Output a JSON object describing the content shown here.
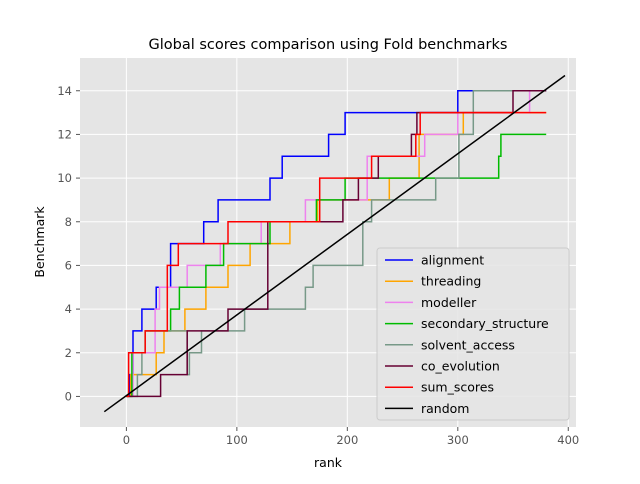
{
  "chart_data": {
    "type": "line",
    "title": "Global scores comparison using Fold benchmarks",
    "xlabel": "rank",
    "ylabel": "Benchmark",
    "xlim": [
      -42,
      407
    ],
    "ylim": [
      -1.4,
      15.5
    ],
    "xticks": [
      0,
      100,
      200,
      300,
      400
    ],
    "yticks": [
      0,
      2,
      4,
      6,
      8,
      10,
      12,
      14
    ],
    "grid": true,
    "legend_position": "lower-right",
    "series": [
      {
        "name": "alignment",
        "color": "#0000ff",
        "points": [
          [
            3,
            0
          ],
          [
            3,
            1
          ],
          [
            6,
            1
          ],
          [
            6,
            3
          ],
          [
            14,
            3
          ],
          [
            14,
            4
          ],
          [
            27,
            4
          ],
          [
            27,
            5
          ],
          [
            40,
            5
          ],
          [
            40,
            7
          ],
          [
            70,
            7
          ],
          [
            70,
            8
          ],
          [
            83,
            8
          ],
          [
            83,
            9
          ],
          [
            130,
            9
          ],
          [
            130,
            10
          ],
          [
            141,
            10
          ],
          [
            141,
            11
          ],
          [
            183,
            11
          ],
          [
            183,
            12
          ],
          [
            198,
            12
          ],
          [
            198,
            13
          ],
          [
            300,
            13
          ],
          [
            300,
            14
          ],
          [
            380,
            14
          ]
        ]
      },
      {
        "name": "threading",
        "color": "#ffa500",
        "points": [
          [
            0,
            0
          ],
          [
            4,
            0
          ],
          [
            4,
            1
          ],
          [
            27,
            1
          ],
          [
            27,
            2
          ],
          [
            34,
            2
          ],
          [
            34,
            3
          ],
          [
            53,
            3
          ],
          [
            53,
            4
          ],
          [
            72,
            4
          ],
          [
            72,
            5
          ],
          [
            92,
            5
          ],
          [
            92,
            6
          ],
          [
            112,
            6
          ],
          [
            112,
            7
          ],
          [
            148,
            7
          ],
          [
            148,
            8
          ],
          [
            173,
            8
          ],
          [
            173,
            9
          ],
          [
            238,
            9
          ],
          [
            238,
            10
          ],
          [
            265,
            10
          ],
          [
            265,
            12
          ],
          [
            305,
            12
          ],
          [
            305,
            13
          ],
          [
            380,
            13
          ]
        ]
      },
      {
        "name": "modeller",
        "color": "#ee82ee",
        "points": [
          [
            0,
            0
          ],
          [
            6,
            0
          ],
          [
            6,
            2
          ],
          [
            26,
            2
          ],
          [
            26,
            4
          ],
          [
            30,
            4
          ],
          [
            30,
            5
          ],
          [
            55,
            5
          ],
          [
            55,
            6
          ],
          [
            85,
            6
          ],
          [
            85,
            7
          ],
          [
            122,
            7
          ],
          [
            122,
            8
          ],
          [
            162,
            8
          ],
          [
            162,
            9
          ],
          [
            218,
            9
          ],
          [
            218,
            11
          ],
          [
            270,
            11
          ],
          [
            270,
            12
          ],
          [
            300,
            12
          ],
          [
            300,
            13
          ],
          [
            365,
            13
          ],
          [
            365,
            14
          ],
          [
            380,
            14
          ]
        ]
      },
      {
        "name": "secondary_structure",
        "color": "#00bb00",
        "points": [
          [
            0,
            0
          ],
          [
            5,
            0
          ],
          [
            5,
            2
          ],
          [
            17,
            2
          ],
          [
            17,
            3
          ],
          [
            40,
            3
          ],
          [
            40,
            4
          ],
          [
            48,
            4
          ],
          [
            48,
            5
          ],
          [
            72,
            5
          ],
          [
            72,
            6
          ],
          [
            88,
            6
          ],
          [
            88,
            7
          ],
          [
            130,
            7
          ],
          [
            130,
            8
          ],
          [
            172,
            8
          ],
          [
            172,
            9
          ],
          [
            198,
            9
          ],
          [
            198,
            10
          ],
          [
            337,
            10
          ],
          [
            337,
            11
          ],
          [
            339,
            11
          ],
          [
            339,
            12
          ],
          [
            380,
            12
          ]
        ]
      },
      {
        "name": "solvent_access",
        "color": "#779988",
        "points": [
          [
            0,
            0
          ],
          [
            10,
            0
          ],
          [
            10,
            1
          ],
          [
            14,
            1
          ],
          [
            14,
            2
          ],
          [
            17,
            2
          ],
          [
            17,
            3
          ],
          [
            55,
            3
          ],
          [
            55,
            1
          ],
          [
            57,
            1
          ],
          [
            57,
            2
          ],
          [
            68,
            2
          ],
          [
            68,
            3
          ],
          [
            107,
            3
          ],
          [
            107,
            4
          ],
          [
            162,
            4
          ],
          [
            162,
            5
          ],
          [
            169,
            5
          ],
          [
            169,
            6
          ],
          [
            214,
            6
          ],
          [
            214,
            8
          ],
          [
            222,
            8
          ],
          [
            222,
            9
          ],
          [
            280,
            9
          ],
          [
            280,
            10
          ],
          [
            301,
            10
          ],
          [
            301,
            12
          ],
          [
            314,
            12
          ],
          [
            314,
            14
          ],
          [
            370,
            14
          ],
          [
            370,
            14
          ],
          [
            380,
            14
          ]
        ]
      },
      {
        "name": "co_evolution",
        "color": "#660033",
        "points": [
          [
            0,
            0
          ],
          [
            31,
            0
          ],
          [
            31,
            1
          ],
          [
            55,
            1
          ],
          [
            55,
            3
          ],
          [
            92,
            3
          ],
          [
            92,
            4
          ],
          [
            128,
            4
          ],
          [
            128,
            7
          ],
          [
            128,
            8
          ],
          [
            196,
            8
          ],
          [
            196,
            9
          ],
          [
            210,
            9
          ],
          [
            210,
            10
          ],
          [
            228,
            10
          ],
          [
            228,
            11
          ],
          [
            258,
            11
          ],
          [
            258,
            12
          ],
          [
            263,
            12
          ],
          [
            263,
            13
          ],
          [
            350,
            13
          ],
          [
            350,
            14
          ],
          [
            380,
            14
          ]
        ]
      },
      {
        "name": "sum_scores",
        "color": "#ff0000",
        "points": [
          [
            0,
            0
          ],
          [
            2,
            0
          ],
          [
            2,
            2
          ],
          [
            17,
            2
          ],
          [
            17,
            3
          ],
          [
            37,
            3
          ],
          [
            37,
            6
          ],
          [
            47,
            6
          ],
          [
            47,
            7
          ],
          [
            72,
            7
          ],
          [
            72,
            7
          ],
          [
            82,
            7
          ],
          [
            82,
            7
          ],
          [
            92,
            7
          ],
          [
            92,
            8
          ],
          [
            130,
            8
          ],
          [
            130,
            8
          ],
          [
            138,
            8
          ],
          [
            138,
            8
          ],
          [
            175,
            8
          ],
          [
            175,
            10
          ],
          [
            222,
            10
          ],
          [
            222,
            11
          ],
          [
            262,
            11
          ],
          [
            262,
            12
          ],
          [
            266,
            12
          ],
          [
            266,
            13
          ],
          [
            380,
            13
          ]
        ]
      },
      {
        "name": "random",
        "color": "#000000",
        "points": [
          [
            -20,
            -0.7
          ],
          [
            397,
            14.7
          ]
        ]
      }
    ]
  }
}
